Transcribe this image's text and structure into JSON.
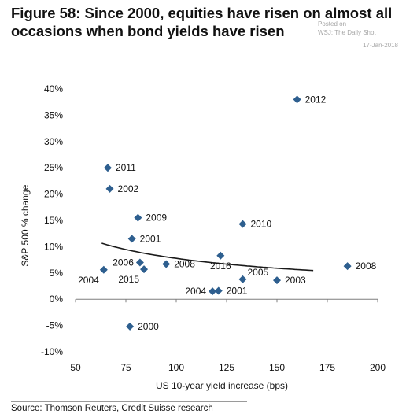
{
  "header": {
    "title": "Figure 58: Since 2000, equities have risen on almost all occasions when bond yields have risen"
  },
  "watermark": {
    "line1": "Posted on",
    "line2": "WSJ: The Daily Shot",
    "date": "17-Jan-2018"
  },
  "footer": {
    "source": "Source: Thomson Reuters, Credit Suisse research"
  },
  "colors": {
    "marker": "#2e5f8f",
    "curve": "#1a1a1a",
    "axis": "#7f7f7f"
  },
  "chart_data": {
    "type": "scatter",
    "title": "",
    "xlabel": "US 10-year yield increase (bps)",
    "ylabel": "S&P 500 % change",
    "xlim": [
      50,
      200
    ],
    "ylim": [
      -10,
      40
    ],
    "x_ticks": [
      50,
      75,
      100,
      125,
      150,
      175,
      200
    ],
    "y_ticks": [
      {
        "v": 40,
        "label": "40%"
      },
      {
        "v": 35,
        "label": "35%"
      },
      {
        "v": 30,
        "label": "30%"
      },
      {
        "v": 25,
        "label": "25%"
      },
      {
        "v": 20,
        "label": "20%"
      },
      {
        "v": 15,
        "label": "15%"
      },
      {
        "v": 10,
        "label": "10%"
      },
      {
        "v": 5,
        "label": "5%"
      },
      {
        "v": 0,
        "label": "0%"
      },
      {
        "v": -5,
        "label": "-5%"
      },
      {
        "v": -10,
        "label": "-10%"
      }
    ],
    "grid": false,
    "marker": "diamond",
    "points": [
      {
        "label": "2012",
        "x": 160,
        "y": 38,
        "label_side": "right"
      },
      {
        "label": "2011",
        "x": 66,
        "y": 25,
        "label_side": "right"
      },
      {
        "label": "2002",
        "x": 67,
        "y": 21,
        "label_side": "right"
      },
      {
        "label": "2009",
        "x": 81,
        "y": 15.5,
        "label_side": "right"
      },
      {
        "label": "2010",
        "x": 133,
        "y": 14.3,
        "label_side": "right"
      },
      {
        "label": "2001",
        "x": 78,
        "y": 11.5,
        "label_side": "right"
      },
      {
        "label": "2016",
        "x": 122,
        "y": 8.3,
        "label_side": "below"
      },
      {
        "label": "2006",
        "x": 82,
        "y": 7,
        "label_side": "left"
      },
      {
        "label": "2008",
        "x": 95,
        "y": 6.7,
        "label_side": "right"
      },
      {
        "label": "2008",
        "x": 185,
        "y": 6.3,
        "label_side": "right"
      },
      {
        "label": "2004",
        "x": 64,
        "y": 5.6,
        "label_side": "below-left"
      },
      {
        "label": "2015",
        "x": 84,
        "y": 5.7,
        "label_side": "below-left"
      },
      {
        "label": "2005",
        "x": 133,
        "y": 3.8,
        "label_side": "above-right"
      },
      {
        "label": "2003",
        "x": 150,
        "y": 3.6,
        "label_side": "right"
      },
      {
        "label": "2004",
        "x": 118,
        "y": 1.5,
        "label_side": "left"
      },
      {
        "label": "2001",
        "x": 121,
        "y": 1.6,
        "label_side": "right"
      },
      {
        "label": "2000",
        "x": 77,
        "y": -5.2,
        "label_side": "right"
      }
    ],
    "trendline": {
      "type": "power",
      "x_range": [
        63,
        168
      ]
    }
  }
}
